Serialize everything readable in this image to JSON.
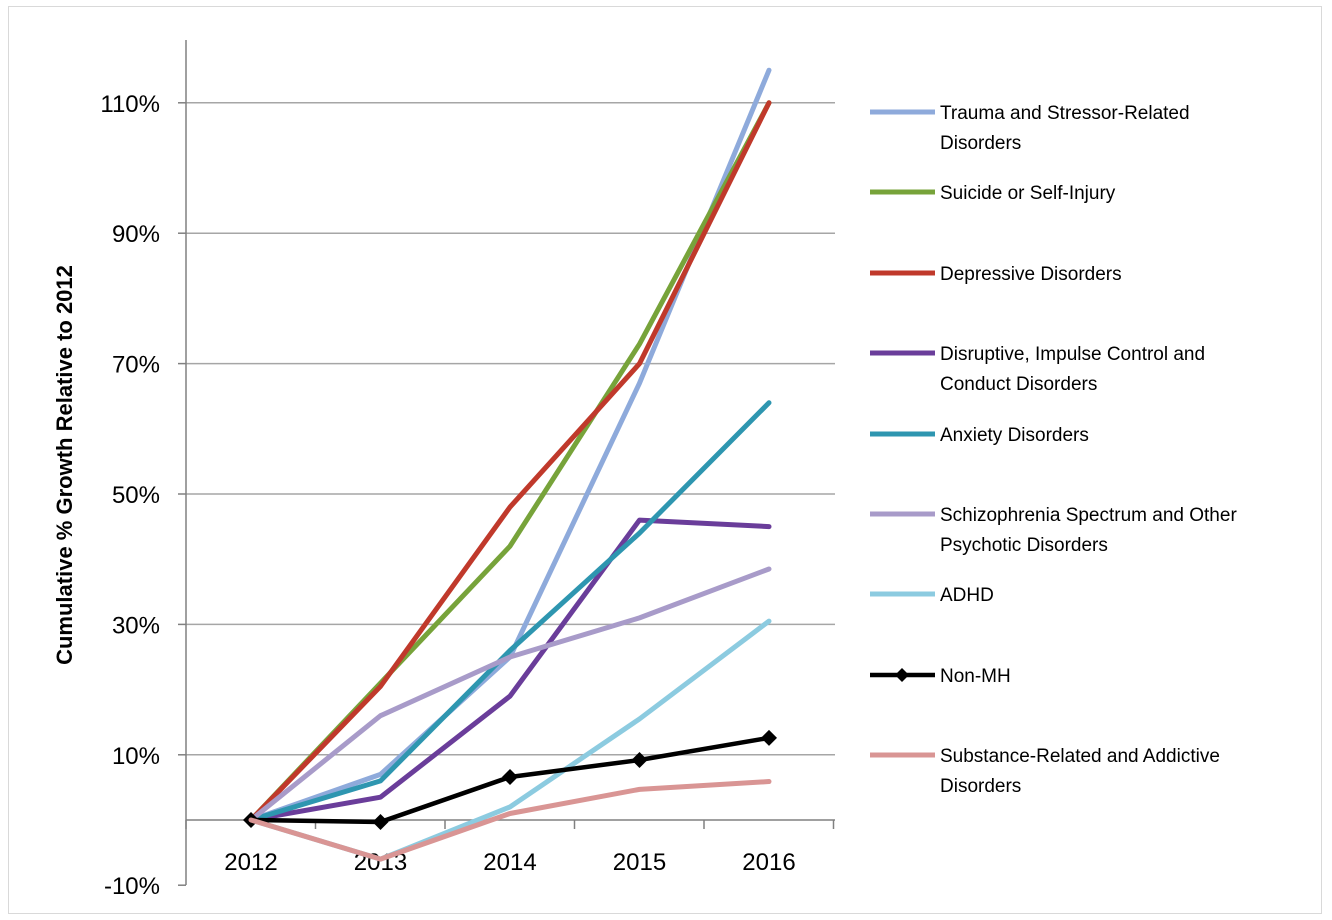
{
  "chart_data": {
    "type": "line",
    "title": "",
    "xlabel": "",
    "ylabel": "Cumulative % Growth Relative to 2012",
    "x": [
      "2012",
      "2013",
      "2014",
      "2015",
      "2016"
    ],
    "ylim": [
      -10,
      120
    ],
    "y_ticks": [
      {
        "value": -10,
        "label": "-10%"
      },
      {
        "value": 10,
        "label": "10%"
      },
      {
        "value": 30,
        "label": "30%"
      },
      {
        "value": 50,
        "label": "50%"
      },
      {
        "value": 70,
        "label": "70%"
      },
      {
        "value": 90,
        "label": "90%"
      },
      {
        "value": 110,
        "label": "110%"
      }
    ],
    "grid": true,
    "legend_position": "right",
    "series": [
      {
        "name": "Trauma and Stressor-Related Disorders",
        "color": "#8eaadb",
        "values": [
          0,
          7,
          25,
          67,
          115
        ]
      },
      {
        "name": "Suicide or Self-Injury",
        "color": "#77a33a",
        "values": [
          0,
          21,
          42,
          73,
          110
        ]
      },
      {
        "name": "Depressive Disorders",
        "color": "#c0392b",
        "values": [
          0,
          20.5,
          48,
          70,
          110
        ]
      },
      {
        "name": "Disruptive, Impulse Control and Conduct Disorders",
        "color": "#6a3d9a",
        "values": [
          0,
          3.5,
          19,
          46,
          45
        ]
      },
      {
        "name": "Anxiety Disorders",
        "color": "#2e96b0",
        "values": [
          0,
          6,
          26,
          44,
          64
        ]
      },
      {
        "name": "Schizophrenia Spectrum and Other Psychotic Disorders",
        "color": "#a89bc9",
        "values": [
          0,
          16,
          25,
          31,
          38.5
        ]
      },
      {
        "name": "ADHD",
        "color": "#8ccbe0",
        "values": [
          0,
          -6,
          2,
          15.5,
          30.5
        ]
      },
      {
        "name": "Non-MH",
        "color": "#000000",
        "marker": "diamond",
        "values": [
          0,
          -0.3,
          6.6,
          9.2,
          12.6
        ]
      },
      {
        "name": "Substance-Related and Addictive Disorders",
        "color": "#d99594",
        "values": [
          0,
          -6,
          1,
          4.7,
          5.9
        ]
      }
    ]
  },
  "legend_lines": [
    [
      "Trauma and Stressor-Related",
      "Disorders"
    ],
    [
      "Suicide or Self-Injury"
    ],
    [
      "Depressive Disorders"
    ],
    [
      "Disruptive, Impulse Control and",
      "Conduct Disorders"
    ],
    [
      "Anxiety Disorders"
    ],
    [
      "Schizophrenia Spectrum and Other",
      "Psychotic Disorders"
    ],
    [
      "ADHD"
    ],
    [
      "Non-MH"
    ],
    [
      "Substance-Related and Addictive",
      "Disorders"
    ]
  ]
}
